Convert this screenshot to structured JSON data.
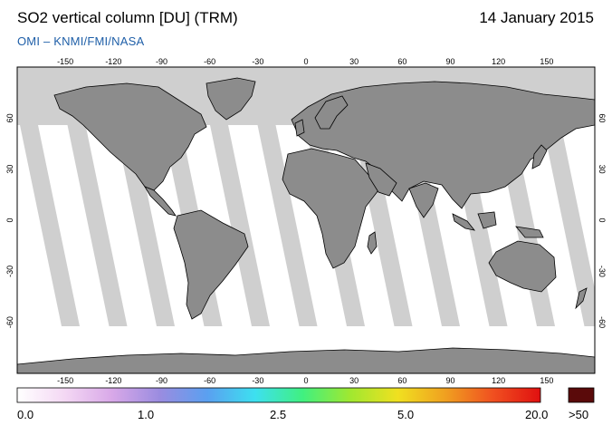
{
  "header": {
    "title": "SO2 vertical column [DU] (TRM)",
    "date": "14 January 2015",
    "credit": "OMI  –  KNMI/FMI/NASA"
  },
  "map": {
    "projection": "equirectangular",
    "lon_ticks": [
      "-150",
      "-120",
      "-90",
      "-60",
      "-30",
      "0",
      "30",
      "60",
      "90",
      "120",
      "150"
    ],
    "lat_ticks": [
      "60",
      "30",
      "0",
      "-30",
      "-60"
    ],
    "colors": {
      "land": "#8c8c8c",
      "no_data": "#cfcfcf",
      "ocean": "#ffffff",
      "coast": "#000000"
    }
  },
  "colorbar": {
    "labels": [
      "0.0",
      "1.0",
      "2.5",
      "5.0",
      "20.0"
    ],
    "overflow_label": ">50",
    "overflow_color": "#5a0a0a",
    "gradient_colors": [
      "#ffffff",
      "#f4d8f4",
      "#d8a8e8",
      "#9a8ce0",
      "#5aa0f0",
      "#3de0f0",
      "#40f080",
      "#a0e830",
      "#f0e020",
      "#f0a020",
      "#f05020",
      "#e01010"
    ]
  }
}
